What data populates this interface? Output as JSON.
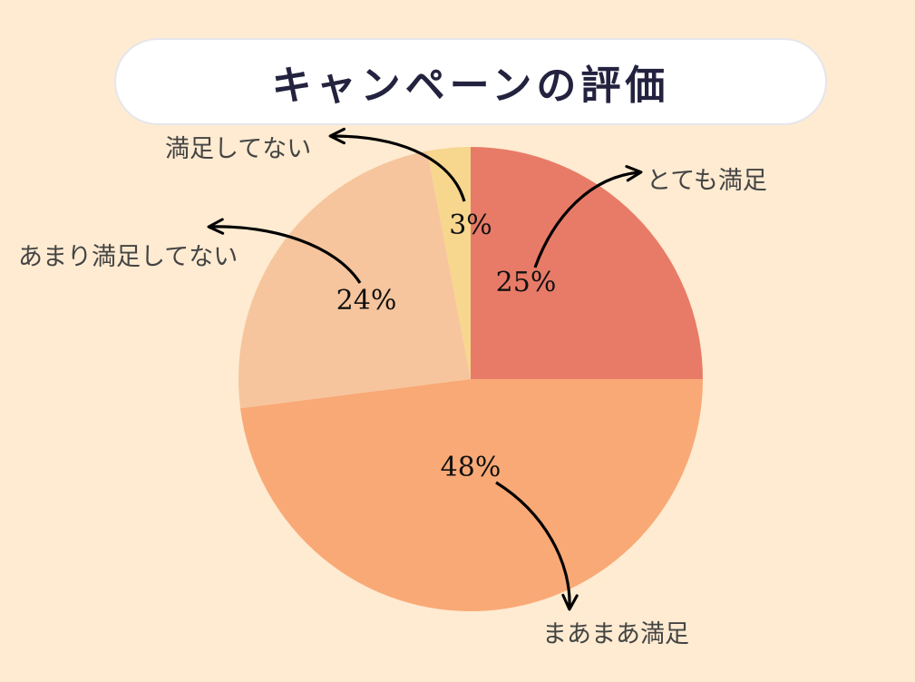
{
  "title": "キャンペーンの評価",
  "chart_data": {
    "type": "pie",
    "title": "キャンペーンの評価",
    "categories": [
      "とても満足",
      "まあまあ満足",
      "あまり満足してない",
      "満足してない"
    ],
    "values": [
      25,
      48,
      24,
      3
    ],
    "value_labels": [
      "25%",
      "48%",
      "24%",
      "3%"
    ],
    "colors": [
      "#E87B67",
      "#F9A976",
      "#F6C59D",
      "#F7D68E"
    ],
    "start": "12 o'clock, clockwise",
    "legend": "none (labels with arrows)"
  }
}
